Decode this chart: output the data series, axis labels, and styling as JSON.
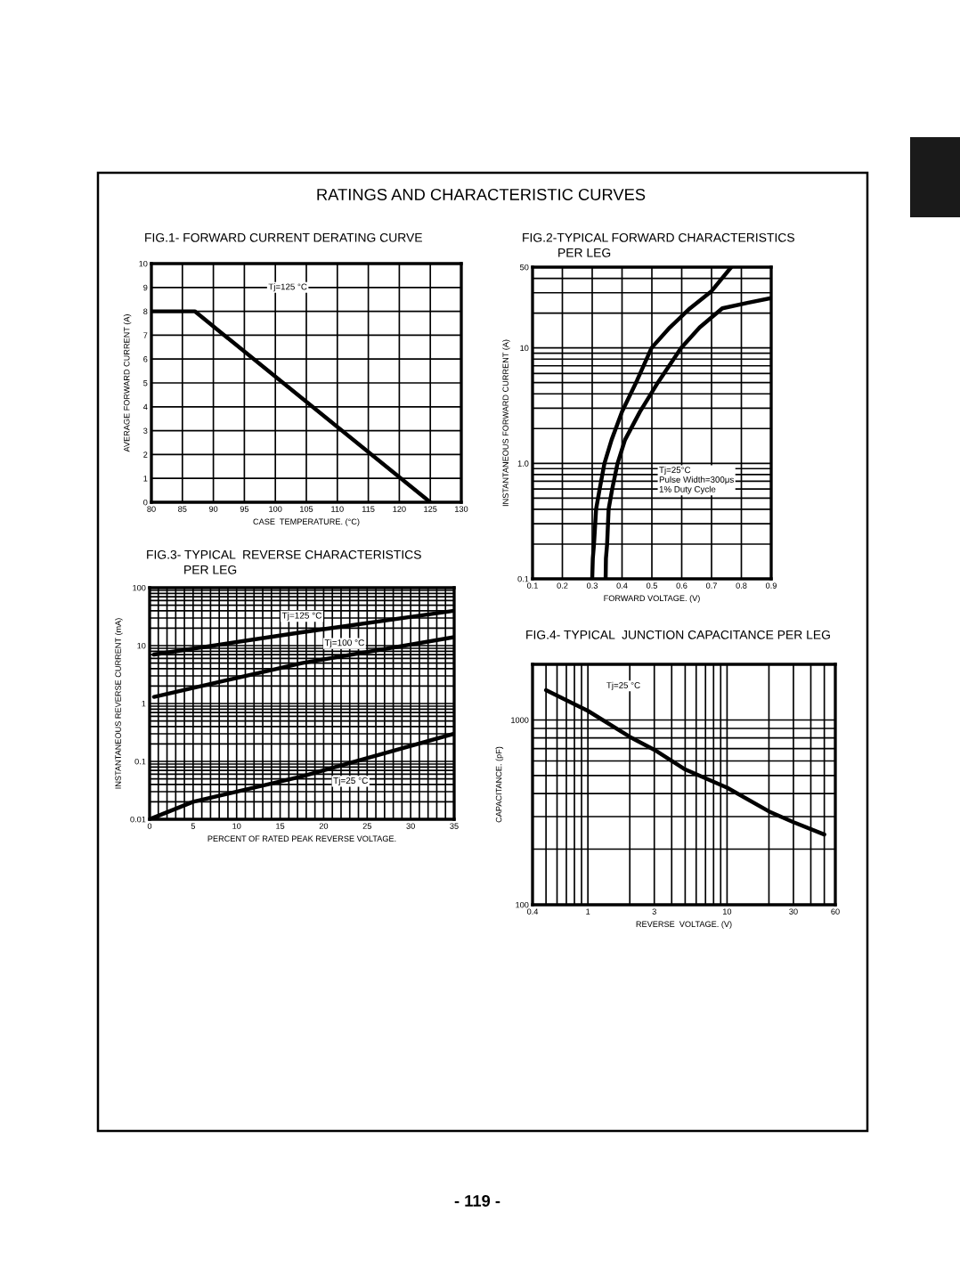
{
  "chart_data": [
    {
      "type": "line",
      "title": "FIG.1- FORWARD CURRENT DERATING CURVE",
      "xlabel": "CASE  TEMPERATURE. (°C)",
      "ylabel": "AVERAGE FORWARD CURRENT (A)",
      "annotations": [
        "RATINGS AND CHARACTERISTIC CURVES",
        "Tj=125 °C",
        "- 119 -"
      ],
      "x": [
        80,
        87,
        125
      ],
      "series": [
        {
          "color": "#000000",
          "values": [
            8,
            8,
            0
          ]
        }
      ],
      "xlim": [
        80,
        130
      ],
      "xticks": [
        80,
        85,
        90,
        95,
        100,
        105,
        110,
        115,
        120,
        125,
        130
      ],
      "ylim": [
        0,
        10
      ],
      "yticks": [
        0,
        1,
        2,
        3,
        4,
        5,
        6,
        7,
        8,
        9,
        10
      ],
      "grid": true
    },
    {
      "type": "line",
      "title": "FIG.2-TYPICAL FORWARD CHARACTERISTICS\nPER LEG",
      "xlabel": "FORWARD VOLTAGE. (V)",
      "ylabel": "INSTANTANEOUS FORWARD CURRENT (A)",
      "annotations": [
        "Tj=25°C\nPulse Width=300μs\n1% Duty Cycle"
      ],
      "log": "y",
      "series": [
        {
          "color": "#000000",
          "x": [
            0.3,
            0.302,
            0.306,
            0.313,
            0.325,
            0.341,
            0.365,
            0.4,
            0.45,
            0.499,
            0.56,
            0.628,
            0.7,
            0.766
          ],
          "values": [
            0.1,
            0.15,
            0.2,
            0.4,
            0.6,
            1.0,
            1.6,
            2.8,
            5.2,
            10,
            15,
            22,
            31,
            50
          ]
        },
        {
          "color": "#000000",
          "x": [
            0.345,
            0.346,
            0.35,
            0.355,
            0.367,
            0.385,
            0.41,
            0.46,
            0.52,
            0.598,
            0.66,
            0.736,
            0.82,
            0.9
          ],
          "values": [
            0.1,
            0.15,
            0.2,
            0.4,
            0.6,
            1.0,
            1.6,
            2.8,
            5,
            10,
            15,
            22,
            24.5,
            27
          ]
        }
      ],
      "xlim": [
        0.1,
        0.9
      ],
      "xticks": [
        0.1,
        0.2,
        0.3,
        0.4,
        0.5,
        0.6,
        0.7,
        0.8,
        0.9
      ],
      "ylim": [
        0.1,
        50
      ],
      "yticks": [
        0.1,
        {
          "value": 0.2,
          "label": null
        },
        {
          "value": 0.3,
          "label": null
        },
        {
          "value": 0.4,
          "label": null
        },
        {
          "value": 0.5,
          "label": null
        },
        {
          "value": 0.6,
          "label": null
        },
        {
          "value": 0.7,
          "label": null
        },
        {
          "value": 0.8,
          "label": null
        },
        {
          "value": 0.9,
          "label": null
        },
        {
          "value": 1,
          "label": "1.0"
        },
        {
          "value": 2,
          "label": null
        },
        {
          "value": 3,
          "label": null
        },
        {
          "value": 4,
          "label": null
        },
        {
          "value": 5,
          "label": null
        },
        {
          "value": 6,
          "label": null
        },
        {
          "value": 7,
          "label": null
        },
        {
          "value": 8,
          "label": null
        },
        {
          "value": 9,
          "label": null
        },
        10,
        {
          "value": 20,
          "label": null
        },
        {
          "value": 30,
          "label": null
        },
        {
          "value": 40,
          "label": null
        },
        50
      ],
      "grid": true
    },
    {
      "type": "line",
      "title": "FIG.3- TYPICAL  REVERSE CHARACTERISTICS\nPER LEG",
      "xlabel": "PERCENT OF RATED PEAK REVERSE VOLTAGE.",
      "ylabel": "INSTANTANEOUS REVERSE CURRENT (mA)",
      "log": "y",
      "series": [
        {
          "name": "Tj=125 °C",
          "color": "#000000",
          "x": [
            0.5,
            17.5,
            35
          ],
          "values": [
            7,
            17,
            40
          ]
        },
        {
          "name": "Tj=100 °C",
          "color": "#000000",
          "x": [
            0.5,
            17.5,
            35
          ],
          "values": [
            1.3,
            5,
            14
          ]
        },
        {
          "name": "Tj=25 °C",
          "color": "#000000",
          "x": [
            0,
            5,
            17.5,
            35
          ],
          "values": [
            0.01,
            0.02,
            0.055,
            0.3
          ]
        }
      ],
      "xlim": [
        0,
        35
      ],
      "xticks": [
        0,
        {
          "value": 1,
          "label": null
        },
        {
          "value": 2,
          "label": null
        },
        {
          "value": 3,
          "label": null
        },
        {
          "value": 4,
          "label": null
        },
        5,
        {
          "value": 6,
          "label": null
        },
        {
          "value": 7,
          "label": null
        },
        {
          "value": 8,
          "label": null
        },
        {
          "value": 9,
          "label": null
        },
        10,
        {
          "value": 11,
          "label": null
        },
        {
          "value": 12,
          "label": null
        },
        {
          "value": 13,
          "label": null
        },
        {
          "value": 14,
          "label": null
        },
        15,
        {
          "value": 16,
          "label": null
        },
        {
          "value": 17,
          "label": null
        },
        {
          "value": 18,
          "label": null
        },
        {
          "value": 19,
          "label": null
        },
        20,
        {
          "value": 21,
          "label": null
        },
        {
          "value": 22,
          "label": null
        },
        {
          "value": 23,
          "label": null
        },
        {
          "value": 24,
          "label": null
        },
        25,
        {
          "value": 26,
          "label": null
        },
        {
          "value": 27,
          "label": null
        },
        {
          "value": 28,
          "label": null
        },
        {
          "value": 29,
          "label": null
        },
        30,
        {
          "value": 31,
          "label": null
        },
        {
          "value": 32,
          "label": null
        },
        {
          "value": 33,
          "label": null
        },
        {
          "value": 34,
          "label": null
        },
        35
      ],
      "ylim": [
        0.01,
        100
      ],
      "yticks": [
        0.01,
        {
          "value": 0.02,
          "label": null
        },
        {
          "value": 0.03,
          "label": null
        },
        {
          "value": 0.04,
          "label": null
        },
        {
          "value": 0.05,
          "label": null
        },
        {
          "value": 0.06,
          "label": null
        },
        {
          "value": 0.07,
          "label": null
        },
        {
          "value": 0.08,
          "label": null
        },
        {
          "value": 0.09,
          "label": null
        },
        0.1,
        {
          "value": 0.2,
          "label": null
        },
        {
          "value": 0.3,
          "label": null
        },
        {
          "value": 0.4,
          "label": null
        },
        {
          "value": 0.5,
          "label": null
        },
        {
          "value": 0.6,
          "label": null
        },
        {
          "value": 0.7,
          "label": null
        },
        {
          "value": 0.8,
          "label": null
        },
        {
          "value": 0.9,
          "label": null
        },
        1,
        {
          "value": 2,
          "label": null
        },
        {
          "value": 3,
          "label": null
        },
        {
          "value": 4,
          "label": null
        },
        {
          "value": 5,
          "label": null
        },
        {
          "value": 6,
          "label": null
        },
        {
          "value": 7,
          "label": null
        },
        {
          "value": 8,
          "label": null
        },
        {
          "value": 9,
          "label": null
        },
        10,
        {
          "value": 20,
          "label": null
        },
        {
          "value": 30,
          "label": null
        },
        {
          "value": 40,
          "label": null
        },
        {
          "value": 50,
          "label": null
        },
        {
          "value": 60,
          "label": null
        },
        {
          "value": 70,
          "label": null
        },
        {
          "value": 80,
          "label": null
        },
        {
          "value": 90,
          "label": null
        },
        100
      ],
      "grid": true
    },
    {
      "type": "line",
      "title": "FIG.4- TYPICAL  JUNCTION CAPACITANCE PER LEG",
      "xlabel": "REVERSE  VOLTAGE. (V)",
      "ylabel": "CAPACITANCE. (pF)",
      "annotations": [
        "Tj=25 °C"
      ],
      "log": "xy",
      "series": [
        {
          "color": "#000000",
          "x": [
            0.5,
            1,
            2,
            3,
            5,
            10,
            20,
            30,
            50
          ],
          "values": [
            1450,
            1120,
            810,
            690,
            540,
            430,
            320,
            280,
            240
          ]
        }
      ],
      "xlim": [
        0.4,
        60
      ],
      "xticks": [
        0.4,
        {
          "value": 0.5,
          "label": null
        },
        {
          "value": 0.6,
          "label": null
        },
        {
          "value": 0.7,
          "label": null
        },
        {
          "value": 0.8,
          "label": null
        },
        {
          "value": 0.9,
          "label": null
        },
        1,
        {
          "value": 2,
          "label": null
        },
        3,
        {
          "value": 4,
          "label": null
        },
        {
          "value": 5,
          "label": null
        },
        {
          "value": 6,
          "label": null
        },
        {
          "value": 7,
          "label": null
        },
        {
          "value": 8,
          "label": null
        },
        {
          "value": 9,
          "label": null
        },
        10,
        {
          "value": 20,
          "label": null
        },
        30,
        {
          "value": 40,
          "label": null
        },
        {
          "value": 50,
          "label": null
        },
        60
      ],
      "ylim": [
        100,
        2000
      ],
      "yticks": [
        100,
        {
          "value": 200,
          "label": null
        },
        {
          "value": 300,
          "label": null
        },
        {
          "value": 400,
          "label": null
        },
        {
          "value": 500,
          "label": null
        },
        {
          "value": 600,
          "label": null
        },
        {
          "value": 700,
          "label": null
        },
        {
          "value": 800,
          "label": null
        },
        {
          "value": 900,
          "label": null
        },
        1000
      ],
      "grid": true
    }
  ]
}
